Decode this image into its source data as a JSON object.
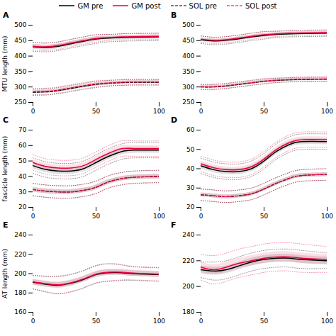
{
  "chart_data": [
    {
      "type": "line",
      "title": "A",
      "ylabel": "MTU length (mm)",
      "legend": "top",
      "x": [
        0,
        10,
        20,
        30,
        40,
        50,
        60,
        70,
        80,
        100
      ],
      "xlim": [
        0,
        100
      ],
      "xticks": [
        0,
        50,
        100
      ],
      "ylim": [
        250,
        500
      ],
      "yticks": [
        250,
        300,
        350,
        400,
        450,
        500
      ],
      "series": [
        {
          "name": "GM pre",
          "color": "#000000",
          "line_style": "solid",
          "values": [
            430,
            428,
            432,
            440,
            448,
            455,
            458,
            460,
            461,
            462
          ],
          "sd": [
            8,
            8,
            8,
            8,
            8,
            8,
            7,
            7,
            7,
            7
          ],
          "sd2": [
            14,
            14,
            14,
            14,
            14,
            14,
            12,
            12,
            12,
            12
          ]
        },
        {
          "name": "GM post",
          "color": "#e8003d",
          "line_style": "solid",
          "values": [
            432,
            430,
            434,
            442,
            450,
            457,
            460,
            462,
            463,
            464
          ],
          "sd": [
            6,
            6,
            6,
            6,
            6,
            6,
            5,
            5,
            5,
            5
          ],
          "sd2": [
            12,
            12,
            12,
            12,
            12,
            12,
            10,
            10,
            10,
            10
          ]
        },
        {
          "name": "SOL pre",
          "color": "#000000",
          "line_style": "dashed",
          "values": [
            283,
            284,
            288,
            295,
            302,
            308,
            312,
            314,
            315,
            315
          ],
          "sd": [
            5,
            5,
            5,
            5,
            5,
            5,
            5,
            5,
            5,
            5
          ],
          "sd2": [
            10,
            10,
            10,
            10,
            10,
            10,
            9,
            9,
            9,
            9
          ]
        },
        {
          "name": "SOL post",
          "color": "#e8003d",
          "line_style": "dashed",
          "values": [
            285,
            286,
            290,
            297,
            304,
            310,
            313,
            315,
            316,
            316
          ],
          "sd": [
            5,
            5,
            5,
            5,
            5,
            5,
            5,
            5,
            5,
            5
          ],
          "sd2": [
            10,
            10,
            10,
            10,
            10,
            10,
            9,
            9,
            9,
            9
          ]
        }
      ]
    },
    {
      "type": "line",
      "title": "B",
      "x": [
        0,
        10,
        20,
        30,
        40,
        50,
        60,
        70,
        80,
        100
      ],
      "xlim": [
        0,
        100
      ],
      "xticks": [
        0,
        50,
        100
      ],
      "ylim": [
        250,
        500
      ],
      "yticks": [
        250,
        300,
        350,
        400,
        450,
        500
      ],
      "series": [
        {
          "name": "GM pre",
          "color": "#000000",
          "line_style": "solid",
          "values": [
            453,
            449,
            451,
            456,
            462,
            467,
            470,
            472,
            473,
            474
          ],
          "sd": [
            6,
            6,
            6,
            6,
            6,
            6,
            5,
            5,
            5,
            5
          ],
          "sd2": [
            12,
            12,
            12,
            12,
            12,
            12,
            10,
            10,
            10,
            10
          ]
        },
        {
          "name": "GM post",
          "color": "#e8003d",
          "line_style": "solid",
          "values": [
            455,
            451,
            453,
            458,
            464,
            469,
            472,
            474,
            475,
            476
          ],
          "sd": [
            5,
            5,
            5,
            5,
            5,
            5,
            5,
            5,
            5,
            5
          ],
          "sd2": [
            10,
            10,
            10,
            10,
            10,
            10,
            9,
            9,
            9,
            9
          ]
        },
        {
          "name": "SOL pre",
          "color": "#000000",
          "line_style": "dashed",
          "values": [
            300,
            300,
            303,
            308,
            313,
            318,
            321,
            323,
            324,
            325
          ],
          "sd": [
            4,
            4,
            4,
            4,
            4,
            4,
            4,
            4,
            4,
            4
          ],
          "sd2": [
            8,
            8,
            8,
            8,
            8,
            8,
            7,
            7,
            7,
            7
          ]
        },
        {
          "name": "SOL post",
          "color": "#e8003d",
          "line_style": "dashed",
          "values": [
            301,
            301,
            304,
            309,
            314,
            319,
            322,
            324,
            325,
            326
          ],
          "sd": [
            4,
            4,
            4,
            4,
            4,
            4,
            4,
            4,
            4,
            4
          ],
          "sd2": [
            8,
            8,
            8,
            8,
            8,
            8,
            7,
            7,
            7,
            7
          ]
        }
      ]
    },
    {
      "type": "line",
      "title": "C",
      "ylabel": "fascicle length (mm)",
      "x": [
        0,
        10,
        20,
        30,
        40,
        50,
        60,
        70,
        80,
        100
      ],
      "xlim": [
        0,
        100
      ],
      "xticks": [
        0,
        50,
        100
      ],
      "ylim": [
        20,
        70
      ],
      "yticks": [
        20,
        30,
        40,
        50,
        60,
        70
      ],
      "series": [
        {
          "name": "GM pre",
          "color": "#000000",
          "line_style": "solid",
          "values": [
            47,
            44.5,
            43.5,
            43.5,
            45,
            49,
            53,
            56,
            57,
            57
          ],
          "sd": [
            2,
            2,
            2,
            2,
            2,
            2,
            2,
            2,
            2,
            2
          ],
          "sd2": [
            5,
            5,
            5,
            5,
            5,
            5,
            5,
            5,
            5,
            5
          ]
        },
        {
          "name": "GM post",
          "color": "#e8003d",
          "line_style": "solid",
          "values": [
            49,
            46.5,
            45.5,
            45.5,
            47,
            51,
            55,
            58,
            58,
            58
          ],
          "sd": [
            2,
            2,
            2,
            2,
            2,
            2,
            2,
            2,
            2,
            2
          ],
          "sd2": [
            5,
            5,
            5,
            5,
            5,
            5,
            5,
            5,
            5,
            5
          ]
        },
        {
          "name": "SOL pre",
          "color": "#000000",
          "line_style": "dashed",
          "values": [
            31.5,
            30.5,
            30,
            30,
            31,
            33,
            36.5,
            38.5,
            39.5,
            40
          ],
          "sd": [
            1.5,
            1.5,
            1.5,
            1.5,
            1.5,
            1.5,
            1.5,
            1.5,
            1.5,
            1.5
          ],
          "sd2": [
            4,
            4,
            4,
            4,
            4,
            4,
            4,
            4,
            4,
            4
          ]
        },
        {
          "name": "SOL post",
          "color": "#e8003d",
          "line_style": "dashed",
          "values": [
            31.5,
            30.5,
            30,
            30,
            31,
            33,
            36.5,
            38.5,
            39.5,
            40
          ],
          "sd": [
            1.5,
            1.5,
            1.5,
            1.5,
            1.5,
            1.5,
            1.5,
            1.5,
            1.5,
            1.5
          ],
          "sd2": [
            4,
            4,
            4,
            4,
            4,
            4,
            4,
            4,
            4,
            4
          ]
        }
      ]
    },
    {
      "type": "line",
      "title": "D",
      "x": [
        0,
        10,
        20,
        30,
        40,
        50,
        60,
        70,
        80,
        100
      ],
      "xlim": [
        0,
        100
      ],
      "xticks": [
        0,
        50,
        100
      ],
      "ylim": [
        20,
        60
      ],
      "yticks": [
        20,
        30,
        40,
        50,
        60
      ],
      "series": [
        {
          "name": "GM pre",
          "color": "#000000",
          "line_style": "solid",
          "values": [
            41.5,
            39.5,
            38.5,
            38.5,
            40,
            44,
            49,
            52.5,
            54,
            54
          ],
          "sd": [
            1.5,
            1.5,
            1.5,
            1.5,
            1.5,
            1.5,
            1.5,
            1.5,
            1.5,
            1.5
          ],
          "sd2": [
            4,
            4,
            4,
            4,
            4,
            4,
            4,
            4,
            4,
            4
          ]
        },
        {
          "name": "GM post",
          "color": "#e8003d",
          "line_style": "solid",
          "values": [
            42.5,
            40.5,
            39.5,
            39.5,
            41,
            45,
            50,
            53.5,
            55,
            55
          ],
          "sd": [
            1.5,
            1.5,
            1.5,
            1.5,
            1.5,
            1.5,
            1.5,
            1.5,
            1.5,
            1.5
          ],
          "sd2": [
            4,
            4,
            4,
            4,
            4,
            4,
            4,
            4,
            4,
            4
          ]
        },
        {
          "name": "SOL pre",
          "color": "#000000",
          "line_style": "dashed",
          "values": [
            26.5,
            26,
            25.5,
            26,
            27,
            29.5,
            32.5,
            35,
            36.5,
            37
          ],
          "sd": [
            1,
            1,
            1,
            1,
            1,
            1,
            1,
            1,
            1,
            1
          ],
          "sd2": [
            3,
            3,
            3,
            3,
            3,
            3,
            3,
            3,
            3,
            3
          ]
        },
        {
          "name": "SOL post",
          "color": "#e8003d",
          "line_style": "dashed",
          "values": [
            26.5,
            26,
            25.5,
            26,
            27,
            29.5,
            32.5,
            35,
            36.5,
            37
          ],
          "sd": [
            1,
            1,
            1,
            1,
            1,
            1,
            1,
            1,
            1,
            1
          ],
          "sd2": [
            3,
            3,
            3,
            3,
            3,
            3,
            3,
            3,
            3,
            3
          ]
        }
      ]
    },
    {
      "type": "line",
      "title": "E",
      "ylabel": "AT length (mm)",
      "x": [
        0,
        10,
        20,
        30,
        40,
        50,
        60,
        70,
        80,
        100
      ],
      "xlim": [
        0,
        100
      ],
      "xticks": [
        0,
        50,
        100
      ],
      "ylim": [
        160,
        240
      ],
      "yticks": [
        160,
        180,
        200,
        220,
        240
      ],
      "series": [
        {
          "name": "GM pre",
          "color": "#000000",
          "line_style": "solid",
          "values": [
            191,
            189,
            188,
            190,
            194,
            199,
            201,
            201,
            200,
            199
          ],
          "sd": [
            3,
            3,
            3,
            3,
            3,
            3,
            3,
            3,
            3,
            3
          ],
          "sd2": [
            7,
            8,
            9,
            9,
            9,
            9,
            9,
            8,
            7,
            7
          ]
        },
        {
          "name": "GM post",
          "color": "#e8003d",
          "line_style": "solid",
          "values": [
            191.5,
            189.5,
            188.5,
            190.5,
            194.5,
            199.5,
            201.5,
            201.5,
            200.5,
            199.5
          ],
          "sd": [
            3,
            3,
            3,
            3,
            3,
            3,
            3,
            3,
            3,
            3
          ],
          "sd2": [
            7,
            8,
            9,
            9,
            9,
            9,
            9,
            8,
            7,
            7
          ]
        }
      ]
    },
    {
      "type": "line",
      "title": "F",
      "x": [
        0,
        10,
        20,
        30,
        40,
        50,
        60,
        70,
        80,
        100
      ],
      "xlim": [
        0,
        100
      ],
      "xticks": [
        0,
        50,
        100
      ],
      "ylim": [
        180,
        240
      ],
      "yticks": [
        180,
        200,
        220,
        240
      ],
      "series": [
        {
          "name": "GM pre",
          "color": "#000000",
          "line_style": "solid",
          "values": [
            213,
            212,
            213,
            216,
            219,
            221,
            222,
            222,
            221,
            220
          ],
          "sd": [
            3,
            3,
            3,
            3,
            3,
            3,
            3,
            3,
            3,
            3
          ],
          "sd2": [
            6,
            7,
            7,
            7,
            7,
            7,
            7,
            7,
            7,
            6
          ]
        },
        {
          "name": "GM post",
          "color": "#e8003d",
          "line_style": "solid",
          "values": [
            215,
            213,
            215,
            218,
            220,
            222,
            223,
            223,
            222,
            221
          ],
          "sd": [
            4,
            4,
            4,
            4,
            4,
            4,
            4,
            4,
            4,
            4
          ],
          "sd2": [
            10,
            11,
            11,
            11,
            11,
            11,
            11,
            11,
            11,
            10
          ]
        }
      ]
    }
  ]
}
